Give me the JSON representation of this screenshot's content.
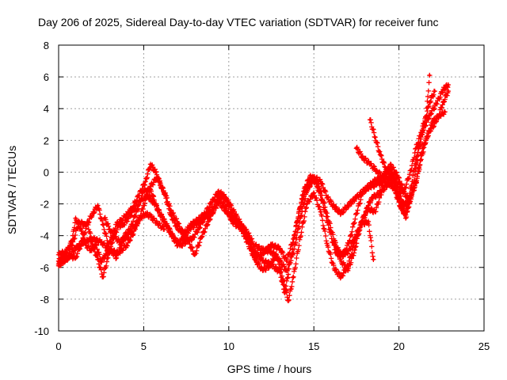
{
  "chart_data": {
    "type": "scatter",
    "title": "Day 206 of 2025, Sidereal Day-to-day VTEC variation (SDTVAR) for receiver func",
    "xlabel": "GPS time / hours",
    "ylabel": "SDTVAR / TECUs",
    "xlim": [
      0,
      25
    ],
    "ylim": [
      -10,
      8
    ],
    "xticks": [
      0,
      5,
      10,
      15,
      20,
      25
    ],
    "yticks": [
      -10,
      -8,
      -6,
      -4,
      -2,
      0,
      2,
      4,
      6,
      8
    ],
    "grid": true,
    "marker": "+",
    "color": "#ff0000",
    "series": [
      {
        "name": "trace-1",
        "points": [
          [
            0.0,
            -5.6
          ],
          [
            0.4,
            -5.2
          ],
          [
            0.8,
            -4.3
          ],
          [
            1.0,
            -2.9
          ],
          [
            1.3,
            -3.6
          ],
          [
            1.6,
            -4.6
          ],
          [
            1.9,
            -4.9
          ],
          [
            2.2,
            -4.6
          ],
          [
            2.5,
            -5.6
          ],
          [
            2.8,
            -5.2
          ],
          [
            3.1,
            -4.1
          ],
          [
            3.4,
            -3.3
          ],
          [
            3.7,
            -3.0
          ],
          [
            4.0,
            -2.7
          ],
          [
            4.3,
            -2.3
          ],
          [
            4.7,
            -1.5
          ],
          [
            5.1,
            -0.6
          ],
          [
            5.4,
            0.5
          ],
          [
            5.7,
            0.0
          ],
          [
            6.0,
            -0.8
          ],
          [
            6.3,
            -1.5
          ],
          [
            6.6,
            -2.4
          ],
          [
            7.0,
            -3.2
          ],
          [
            7.4,
            -4.1
          ],
          [
            7.8,
            -4.3
          ],
          [
            8.2,
            -3.6
          ],
          [
            8.6,
            -2.8
          ],
          [
            9.0,
            -2.4
          ],
          [
            9.4,
            -1.5
          ],
          [
            9.8,
            -2.2
          ],
          [
            10.2,
            -3.1
          ],
          [
            10.6,
            -3.5
          ],
          [
            11.0,
            -3.8
          ],
          [
            11.5,
            -5.0
          ],
          [
            12.0,
            -5.6
          ],
          [
            12.5,
            -5.8
          ],
          [
            13.0,
            -6.3
          ],
          [
            13.3,
            -7.6
          ],
          [
            13.6,
            -5.7
          ],
          [
            14.0,
            -3.2
          ],
          [
            14.4,
            -1.2
          ],
          [
            14.8,
            -0.2
          ],
          [
            15.1,
            -0.6
          ],
          [
            15.5,
            -1.8
          ],
          [
            15.9,
            -3.6
          ],
          [
            16.3,
            -5.1
          ],
          [
            16.7,
            -5.3
          ],
          [
            17.1,
            -4.3
          ],
          [
            17.5,
            -2.6
          ],
          [
            17.9,
            -1.2
          ],
          [
            18.3,
            -0.9
          ],
          [
            18.7,
            -0.8
          ],
          [
            19.1,
            -0.5
          ],
          [
            19.5,
            -0.2
          ],
          [
            19.9,
            -0.9
          ],
          [
            20.3,
            -2.1
          ],
          [
            20.6,
            -1.9
          ],
          [
            21.0,
            -0.7
          ],
          [
            21.3,
            0.8
          ],
          [
            21.6,
            2.1
          ],
          [
            22.0,
            3.2
          ],
          [
            22.4,
            3.6
          ],
          [
            22.7,
            3.8
          ]
        ]
      },
      {
        "name": "trace-2",
        "points": [
          [
            0.0,
            -5.8
          ],
          [
            0.5,
            -5.4
          ],
          [
            1.0,
            -4.8
          ],
          [
            1.5,
            -4.4
          ],
          [
            2.0,
            -4.2
          ],
          [
            2.5,
            -4.4
          ],
          [
            3.0,
            -4.9
          ],
          [
            3.5,
            -5.1
          ],
          [
            4.0,
            -4.6
          ],
          [
            4.5,
            -3.6
          ],
          [
            5.0,
            -2.1
          ],
          [
            5.4,
            -0.9
          ],
          [
            5.8,
            -0.3
          ],
          [
            6.2,
            -1.3
          ],
          [
            6.6,
            -2.7
          ],
          [
            7.0,
            -3.6
          ],
          [
            7.4,
            -3.8
          ],
          [
            7.8,
            -3.3
          ],
          [
            8.2,
            -3.0
          ],
          [
            8.6,
            -2.6
          ],
          [
            9.0,
            -1.9
          ],
          [
            9.4,
            -1.2
          ],
          [
            9.8,
            -1.6
          ],
          [
            10.2,
            -2.6
          ],
          [
            10.6,
            -3.3
          ],
          [
            11.0,
            -3.6
          ],
          [
            11.5,
            -4.6
          ],
          [
            12.0,
            -4.9
          ],
          [
            12.5,
            -5.0
          ],
          [
            13.0,
            -5.6
          ],
          [
            13.4,
            -6.2
          ],
          [
            13.8,
            -5.1
          ],
          [
            14.2,
            -2.9
          ],
          [
            14.6,
            -1.2
          ],
          [
            15.0,
            -0.3
          ],
          [
            15.4,
            -0.6
          ],
          [
            15.8,
            -1.6
          ],
          [
            16.2,
            -2.2
          ],
          [
            16.6,
            -2.6
          ],
          [
            17.0,
            -2.1
          ],
          [
            17.5,
            -1.6
          ],
          [
            18.0,
            -1.1
          ],
          [
            18.5,
            -0.6
          ],
          [
            19.0,
            -0.3
          ],
          [
            19.4,
            0.2
          ],
          [
            19.8,
            -0.4
          ],
          [
            20.2,
            -1.2
          ],
          [
            20.6,
            -1.7
          ],
          [
            21.0,
            -0.6
          ],
          [
            21.4,
            1.5
          ],
          [
            21.8,
            2.6
          ],
          [
            22.2,
            3.2
          ],
          [
            22.6,
            4.4
          ],
          [
            22.9,
            5.1
          ]
        ]
      },
      {
        "name": "trace-3",
        "points": [
          [
            0.0,
            -5.2
          ],
          [
            0.4,
            -5.0
          ],
          [
            0.8,
            -4.6
          ],
          [
            1.2,
            -3.1
          ],
          [
            1.6,
            -3.4
          ],
          [
            2.0,
            -2.6
          ],
          [
            2.3,
            -2.1
          ],
          [
            2.6,
            -3.3
          ],
          [
            3.0,
            -4.8
          ],
          [
            3.4,
            -5.4
          ],
          [
            3.8,
            -4.1
          ],
          [
            4.2,
            -3.6
          ],
          [
            4.6,
            -2.4
          ],
          [
            5.0,
            -1.2
          ],
          [
            5.4,
            -1.1
          ],
          [
            5.8,
            -2.3
          ],
          [
            6.2,
            -3.1
          ],
          [
            6.6,
            -3.9
          ],
          [
            7.0,
            -4.6
          ],
          [
            7.4,
            -4.0
          ],
          [
            7.8,
            -3.5
          ],
          [
            8.2,
            -3.2
          ],
          [
            8.6,
            -2.9
          ],
          [
            9.0,
            -2.6
          ],
          [
            9.4,
            -1.9
          ],
          [
            9.8,
            -2.4
          ],
          [
            10.2,
            -2.9
          ],
          [
            10.6,
            -3.2
          ],
          [
            11.0,
            -4.2
          ],
          [
            11.5,
            -5.4
          ],
          [
            12.0,
            -5.1
          ],
          [
            12.5,
            -4.6
          ],
          [
            13.0,
            -4.8
          ],
          [
            13.4,
            -5.6
          ],
          [
            13.8,
            -4.2
          ],
          [
            14.2,
            -2.2
          ],
          [
            14.6,
            -0.9
          ],
          [
            15.0,
            -0.5
          ],
          [
            15.4,
            -1.2
          ],
          [
            15.8,
            -2.8
          ],
          [
            16.2,
            -4.3
          ],
          [
            16.6,
            -5.6
          ],
          [
            17.0,
            -6.2
          ],
          [
            17.4,
            -4.9
          ],
          [
            17.8,
            -3.1
          ],
          [
            18.2,
            -2.3
          ],
          [
            18.6,
            -2.5
          ],
          [
            19.0,
            -1.2
          ],
          [
            19.4,
            -0.7
          ],
          [
            19.8,
            -1.1
          ],
          [
            20.2,
            -2.4
          ],
          [
            20.6,
            -1.6
          ],
          [
            21.0,
            0.8
          ],
          [
            21.4,
            2.6
          ],
          [
            21.8,
            3.6
          ],
          [
            22.2,
            4.3
          ],
          [
            22.6,
            5.2
          ],
          [
            22.9,
            5.5
          ]
        ]
      },
      {
        "name": "trace-4",
        "points": [
          [
            0.0,
            -5.9
          ],
          [
            0.3,
            -5.6
          ],
          [
            0.7,
            -5.3
          ],
          [
            1.0,
            -5.4
          ],
          [
            1.4,
            -4.3
          ],
          [
            1.7,
            -3.2
          ],
          [
            2.0,
            -4.6
          ],
          [
            2.3,
            -5.5
          ],
          [
            2.6,
            -6.6
          ],
          [
            2.9,
            -5.4
          ],
          [
            3.2,
            -4.2
          ],
          [
            3.5,
            -3.4
          ],
          [
            3.8,
            -3.3
          ],
          [
            4.1,
            -2.9
          ],
          [
            4.4,
            -2.4
          ],
          [
            4.8,
            -1.8
          ],
          [
            5.2,
            -1.5
          ],
          [
            5.6,
            -1.9
          ],
          [
            6.0,
            -2.7
          ],
          [
            6.4,
            -3.4
          ],
          [
            6.8,
            -4.2
          ],
          [
            7.2,
            -4.6
          ],
          [
            7.6,
            -4.3
          ],
          [
            8.0,
            -5.2
          ],
          [
            8.4,
            -4.1
          ],
          [
            8.8,
            -3.1
          ],
          [
            9.2,
            -2.2
          ],
          [
            9.6,
            -1.5
          ],
          [
            10.0,
            -1.9
          ],
          [
            10.4,
            -2.7
          ],
          [
            10.8,
            -3.4
          ],
          [
            11.2,
            -4.4
          ],
          [
            11.6,
            -5.6
          ],
          [
            12.0,
            -6.2
          ],
          [
            12.4,
            -5.9
          ],
          [
            12.8,
            -5.2
          ],
          [
            13.2,
            -6.8
          ],
          [
            13.5,
            -8.1
          ],
          [
            13.8,
            -6.6
          ],
          [
            14.2,
            -4.1
          ],
          [
            14.6,
            -2.0
          ],
          [
            15.0,
            -1.3
          ],
          [
            15.4,
            -2.5
          ],
          [
            15.8,
            -4.6
          ],
          [
            16.2,
            -6.1
          ],
          [
            16.6,
            -6.6
          ],
          [
            17.0,
            -5.9
          ],
          [
            17.4,
            -4.4
          ],
          [
            17.8,
            -3.2
          ],
          [
            18.2,
            -2.1
          ],
          [
            18.4,
            -1.6
          ],
          [
            18.8,
            -1.4
          ],
          [
            19.2,
            -0.7
          ],
          [
            19.6,
            -0.1
          ],
          [
            20.0,
            -1.6
          ],
          [
            20.4,
            -2.9
          ],
          [
            20.8,
            -1.1
          ],
          [
            21.2,
            1.6
          ],
          [
            21.5,
            3.1
          ],
          [
            21.8,
            4.4
          ],
          [
            22.1,
            5.1
          ]
        ]
      },
      {
        "name": "trace-5",
        "points": [
          [
            18.3,
            3.3
          ],
          [
            18.6,
            2.2
          ],
          [
            18.9,
            1.1
          ],
          [
            19.2,
            0.3
          ],
          [
            19.5,
            -0.5
          ],
          [
            19.8,
            -1.3
          ],
          [
            20.1,
            -2.2
          ],
          [
            20.4,
            -2.7
          ],
          [
            20.7,
            -1.6
          ]
        ]
      },
      {
        "name": "trace-6",
        "points": [
          [
            17.5,
            1.5
          ],
          [
            17.9,
            0.9
          ],
          [
            18.3,
            0.5
          ],
          [
            18.7,
            0.1
          ],
          [
            19.1,
            -0.4
          ],
          [
            19.5,
            0.5
          ],
          [
            19.9,
            -0.2
          ],
          [
            20.3,
            -1.2
          ],
          [
            20.7,
            0.1
          ],
          [
            21.0,
            1.5
          ],
          [
            21.3,
            2.5
          ],
          [
            21.6,
            3.5
          ],
          [
            21.8,
            6.1
          ]
        ]
      },
      {
        "name": "trace-7",
        "points": [
          [
            16.2,
            -4.6
          ],
          [
            16.6,
            -5.1
          ],
          [
            17.0,
            -5.1
          ],
          [
            17.4,
            -4.1
          ],
          [
            17.8,
            -3.3
          ],
          [
            18.2,
            -3.1
          ],
          [
            18.5,
            -5.5
          ]
        ]
      },
      {
        "name": "trace-8",
        "points": [
          [
            2.7,
            -2.9
          ],
          [
            3.0,
            -3.6
          ],
          [
            3.3,
            -4.1
          ],
          [
            3.6,
            -4.4
          ],
          [
            3.9,
            -4.2
          ],
          [
            4.2,
            -3.8
          ],
          [
            4.5,
            -3.3
          ],
          [
            4.8,
            -2.9
          ],
          [
            5.1,
            -2.6
          ],
          [
            5.4,
            -2.8
          ],
          [
            5.8,
            -3.2
          ],
          [
            6.2,
            -3.6
          ]
        ]
      }
    ]
  }
}
